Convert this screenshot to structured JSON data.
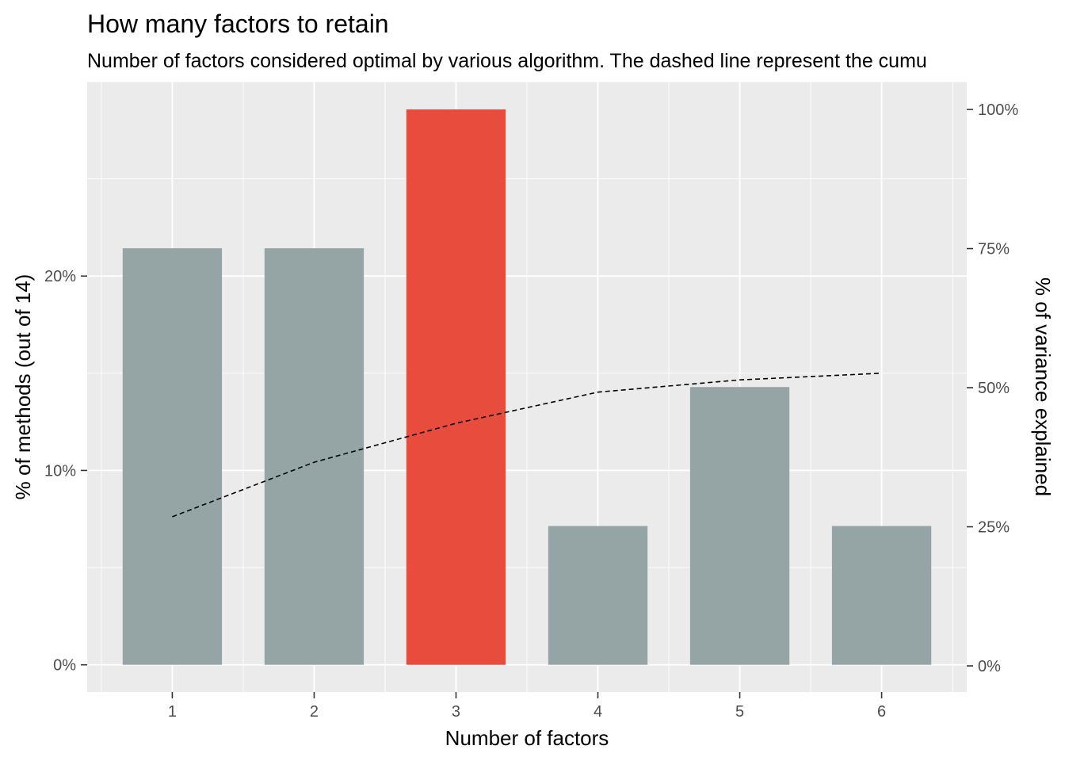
{
  "chart_data": {
    "type": "bar",
    "title": "How many factors to retain",
    "subtitle": "Number of factors considered optimal by various algorithm. The dashed line represent the cumu",
    "xlabel": "Number of factors",
    "ylabel": "% of methods (out of 14)",
    "y2label": "% of variance explained",
    "categories": [
      "1",
      "2",
      "3",
      "4",
      "5",
      "6"
    ],
    "series": [
      {
        "values": [
          21.43,
          21.43,
          28.57,
          7.14,
          14.29,
          7.14
        ],
        "colors": [
          "#95a5a6",
          "#95a5a6",
          "#e74c3c",
          "#95a5a6",
          "#95a5a6",
          "#95a5a6"
        ]
      },
      {
        "type": "line",
        "line_style": "dashed",
        "axis": "secondary",
        "values": [
          26.8,
          36.6,
          43.6,
          49.2,
          51.4,
          52.6
        ]
      }
    ],
    "y_ticks": [
      {
        "value": 0,
        "label": "0%"
      },
      {
        "value": 10,
        "label": "10%"
      },
      {
        "value": 20,
        "label": "20%"
      }
    ],
    "y2_ticks": [
      {
        "value": 0,
        "label": "0%"
      },
      {
        "value": 25,
        "label": "25%"
      },
      {
        "value": 50,
        "label": "50%"
      },
      {
        "value": 75,
        "label": "75%"
      },
      {
        "value": 100,
        "label": "100%"
      }
    ],
    "ylim": [
      -1.4,
      30
    ],
    "y2lim": [
      -4.7,
      105
    ],
    "grid": true,
    "colors": {
      "panel": "#ebebeb",
      "grid": "#ffffff",
      "default_bar": "#95a5a6",
      "highlight_bar": "#e74c3c",
      "line": "#000000"
    }
  }
}
